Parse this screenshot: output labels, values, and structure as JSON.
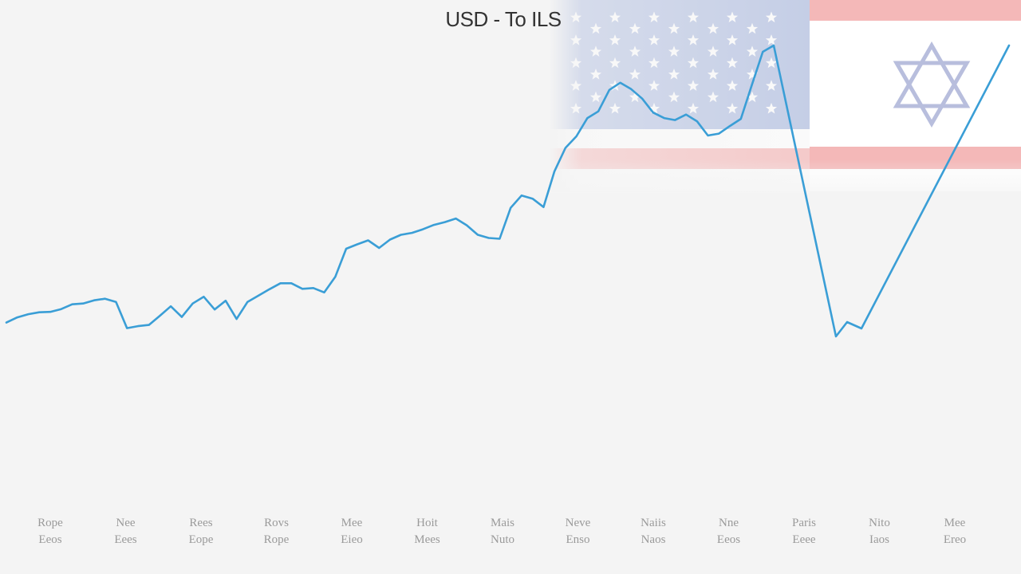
{
  "chart_data": {
    "type": "line",
    "title": "USD - To ILS",
    "xlabel": "",
    "ylabel": "",
    "grid": false,
    "legend": "none",
    "x_tick_labels": [
      [
        "Rope",
        "Eeos"
      ],
      [
        "Nee",
        "Eees"
      ],
      [
        "Rees",
        "Eope"
      ],
      [
        "Rovs",
        "Rope"
      ],
      [
        "Mee",
        "Eieo"
      ],
      [
        "Hoit",
        "Mees"
      ],
      [
        "Mais",
        "Nuto"
      ],
      [
        "Neve",
        "Enso"
      ],
      [
        "Naiis",
        "Naos"
      ],
      [
        "Nne",
        "Eeos"
      ],
      [
        "Paris",
        "Eeee"
      ],
      [
        "Nito",
        "Iaos"
      ],
      [
        "Mee",
        "Ereo"
      ]
    ],
    "ylim": [
      0,
      100
    ],
    "x": [
      0,
      4,
      8,
      12,
      16,
      20,
      24,
      28,
      32,
      36,
      40,
      44,
      48,
      52,
      56,
      60,
      64,
      68,
      72,
      76,
      80,
      84,
      88,
      92,
      96,
      100,
      104,
      108,
      112,
      116,
      120,
      124,
      128,
      132,
      136,
      140,
      144,
      148,
      152,
      156,
      160,
      164,
      168,
      172,
      176,
      180,
      184,
      188,
      192,
      196,
      200,
      204,
      208,
      212,
      216,
      220,
      224,
      228,
      232,
      236,
      240,
      244,
      248,
      252,
      256,
      260,
      264,
      268,
      272,
      276,
      280,
      284,
      288,
      292,
      296,
      300,
      304,
      308,
      312,
      316,
      320,
      324,
      328,
      332,
      336,
      340,
      344,
      348,
      352,
      356,
      360,
      364,
      368,
      372,
      376,
      380,
      384,
      388,
      392,
      396,
      400,
      404,
      408,
      412,
      416,
      420,
      424,
      428,
      432,
      436,
      440,
      444
    ],
    "values": [
      30.2,
      31.5,
      32.3,
      32.8,
      32.9,
      33.6,
      34.8,
      35.0,
      35.8,
      36.2,
      35.4,
      28.8,
      29.3,
      29.6,
      31.9,
      34.3,
      31.6,
      35.0,
      36.7,
      33.5,
      35.7,
      31.1,
      35.4,
      37.0,
      38.6,
      40.1,
      40.1,
      38.7,
      38.9,
      37.8,
      41.7,
      48.8,
      49.9,
      50.9,
      49.0,
      51.1,
      52.3,
      52.8,
      53.7,
      54.8,
      55.5,
      56.4,
      54.7,
      52.3,
      51.5,
      51.3,
      59.1,
      62.2,
      61.4,
      59.3,
      68.3,
      74.2,
      77.1,
      81.7,
      83.4,
      88.8,
      90.6,
      89.0,
      86.6,
      83.1,
      81.7,
      81.2,
      82.6,
      80.9,
      77.3,
      77.8,
      79.7,
      81.5,
      90.0,
      98.4,
      100.0,
      94.2,
      84.3,
      78.2,
      72.3,
      66.7,
      63.1,
      62.6,
      63.9,
      65.8,
      67.6,
      69.4,
      71.2,
      73.1,
      74.9,
      76.7,
      78.5,
      80.3,
      82.1,
      84.0,
      85.8,
      87.6,
      89.4,
      91.2,
      93.0,
      94.8,
      96.6,
      98.4,
      100.0,
      100.0,
      100.0,
      100.0,
      100.0,
      100.0,
      100.0,
      100.0,
      100.0,
      100.0,
      100.0,
      100.0,
      100.0,
      100.0
    ],
    "line_color": "#3a9ed6",
    "background": "#f4f4f4"
  }
}
